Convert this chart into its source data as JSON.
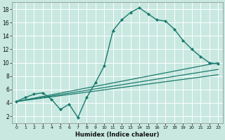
{
  "title": "",
  "xlabel": "Humidex (Indice chaleur)",
  "ylabel": "",
  "bg_color": "#c8e8e0",
  "grid_color": "#aed4cc",
  "line_color": "#1a7a6e",
  "xlim": [
    -0.5,
    23.5
  ],
  "ylim": [
    1,
    19
  ],
  "yticks": [
    2,
    4,
    6,
    8,
    10,
    12,
    14,
    16,
    18
  ],
  "xticks": [
    0,
    1,
    2,
    3,
    4,
    5,
    6,
    7,
    8,
    9,
    10,
    11,
    12,
    13,
    14,
    15,
    16,
    17,
    18,
    19,
    20,
    21,
    22,
    23
  ],
  "series": [
    {
      "x": [
        0,
        1,
        2,
        3,
        4,
        5,
        6,
        7,
        8,
        9,
        10,
        11,
        12,
        13,
        14,
        15,
        16,
        17,
        18,
        19,
        20,
        21,
        22,
        23
      ],
      "y": [
        4.2,
        4.8,
        5.3,
        5.5,
        4.5,
        3.0,
        3.8,
        1.8,
        4.8,
        7.0,
        9.5,
        14.8,
        16.4,
        17.5,
        18.2,
        17.3,
        16.4,
        16.2,
        15.0,
        13.3,
        12.0,
        10.9,
        10.0,
        9.8
      ],
      "marker": "D",
      "markersize": 2.0,
      "linewidth": 1.0
    },
    {
      "x": [
        0,
        23
      ],
      "y": [
        4.2,
        10.0
      ],
      "marker": null,
      "markersize": 0,
      "linewidth": 0.9
    },
    {
      "x": [
        0,
        23
      ],
      "y": [
        4.2,
        9.0
      ],
      "marker": null,
      "markersize": 0,
      "linewidth": 0.9
    },
    {
      "x": [
        0,
        23
      ],
      "y": [
        4.2,
        8.2
      ],
      "marker": null,
      "markersize": 0,
      "linewidth": 0.9
    }
  ]
}
